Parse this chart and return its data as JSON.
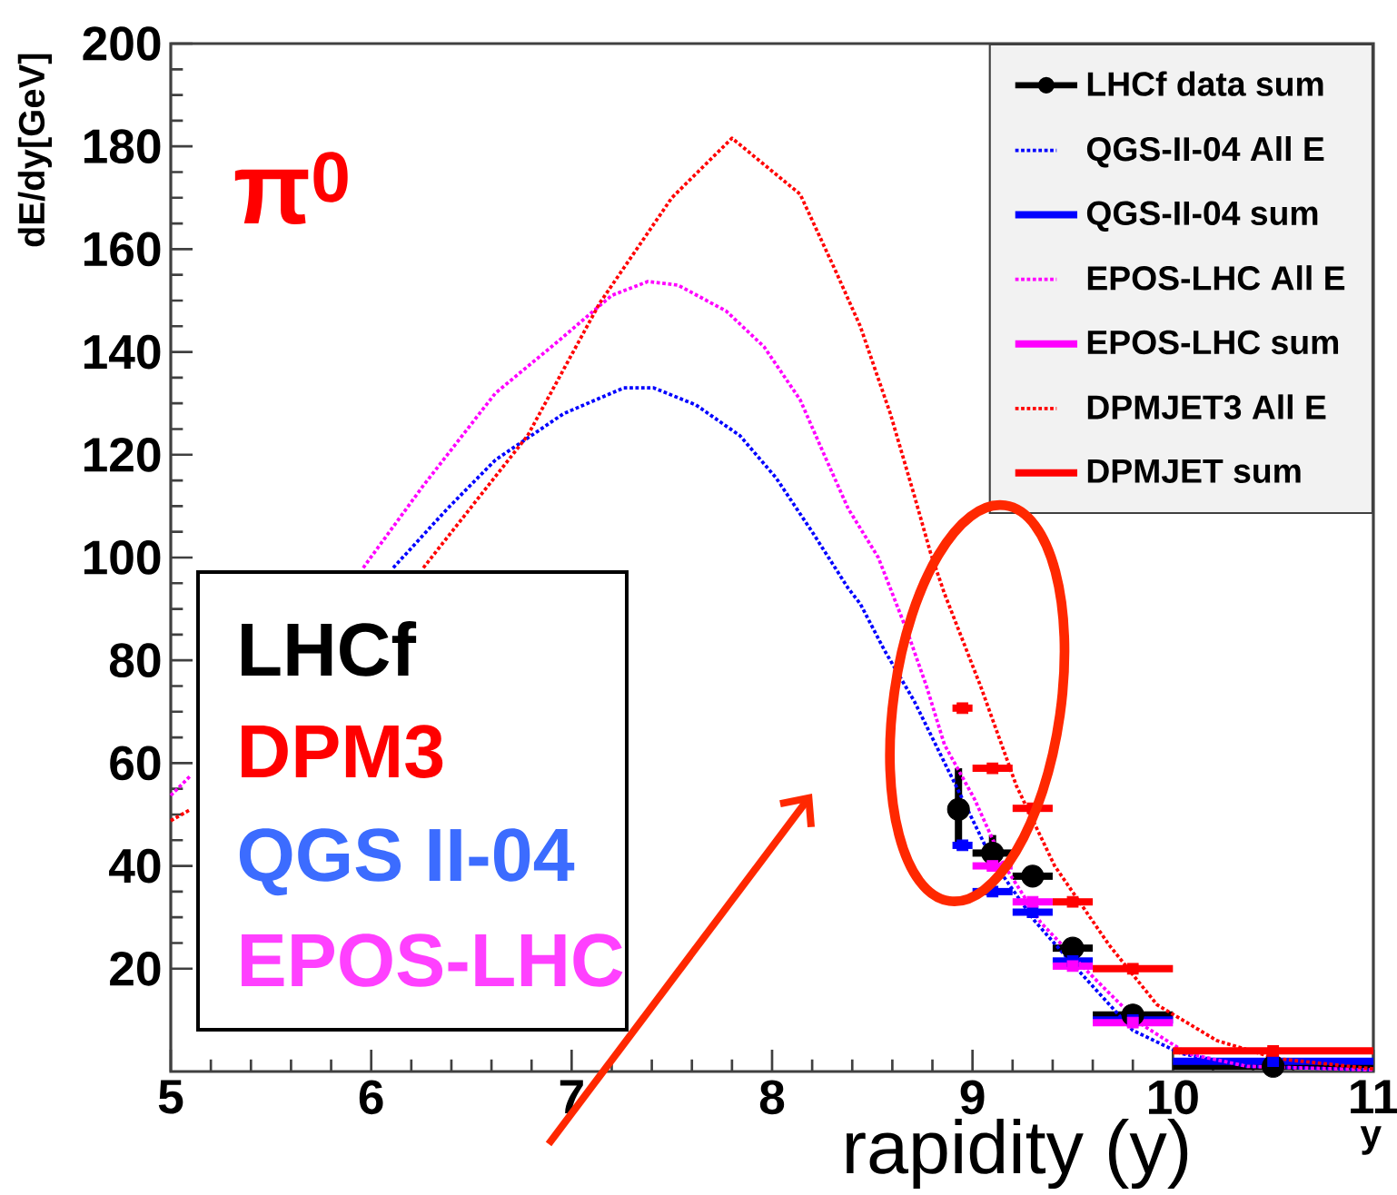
{
  "chart_data": {
    "type": "line",
    "ylabel": "dE/dy[GeV]",
    "xlabel": "y",
    "xlim": [
      5,
      11
    ],
    "ylim": [
      0,
      200
    ],
    "xticks": [
      5,
      6,
      7,
      8,
      9,
      10,
      11
    ],
    "yticks": [
      20,
      40,
      60,
      80,
      100,
      120,
      140,
      160,
      180,
      200
    ],
    "legend": "top right",
    "annotations": [
      "π$^{0}$",
      "LHCf",
      "DPM3",
      "QGS II-04",
      "EPOS-LHC",
      "rapidity (y)"
    ],
    "series": [
      {
        "name": "LHCf data sum",
        "type": "scatter",
        "color": "#000000",
        "marker": "circle",
        "x": [
          8.93,
          9.1,
          9.3,
          9.5,
          9.8,
          10.5
        ],
        "values": [
          51,
          42.5,
          38,
          24,
          11,
          1
        ],
        "errors": [
          [
            44,
            59
          ],
          [
            39,
            46
          ],
          null,
          null,
          null,
          null
        ],
        "xerrors": [
          0.05,
          0.1,
          0.1,
          0.1,
          0.2,
          0.5
        ]
      },
      {
        "name": "QGS-II-04 All E",
        "line_style": "dotted",
        "color": "#0000ff",
        "x": [
          6.11,
          6.38,
          6.62,
          6.96,
          7.26,
          7.41,
          7.62,
          7.84,
          8.02,
          8.2,
          8.38,
          8.44,
          8.56,
          8.71,
          8.83,
          8.95,
          9.1,
          9.31,
          9.52,
          9.8,
          10.04,
          10.37,
          11
        ],
        "values": [
          98,
          109.5,
          119,
          128,
          133,
          133,
          129.7,
          123.7,
          115.5,
          105,
          94,
          91,
          82,
          72,
          62.5,
          53,
          41,
          29.3,
          20,
          8,
          3.5,
          1,
          0.3
        ]
      },
      {
        "name": "QGS-II-04 sum",
        "type": "scatter",
        "marker": "square",
        "color": "#0000ff",
        "x": [
          8.95,
          9.1,
          9.3,
          9.5,
          9.8,
          10.5
        ],
        "values": [
          44,
          35,
          31,
          21.5,
          10,
          2
        ],
        "xerrors": [
          0.05,
          0.1,
          0.1,
          0.1,
          0.2,
          0.5
        ]
      },
      {
        "name": "EPOS-LHC All E",
        "line_style": "dotted",
        "color": "#ff00ff",
        "x": [
          5,
          5.1,
          5.5,
          5.96,
          6.26,
          6.62,
          6.93,
          7.2,
          7.38,
          7.53,
          7.77,
          7.96,
          8.14,
          8.26,
          8.38,
          8.53,
          8.68,
          8.77,
          8.86,
          9.01,
          9.16,
          9.34,
          9.56,
          9.83,
          10.07,
          10.37,
          11
        ],
        "values": [
          53.7,
          57.6,
          null,
          98,
          114,
          132,
          142,
          151,
          153.7,
          153,
          148,
          141,
          130.7,
          120,
          109.5,
          100,
          85,
          75,
          63.6,
          53,
          40,
          29,
          20,
          9.5,
          3.5,
          1,
          0.3
        ]
      },
      {
        "name": "EPOS-LHC sum",
        "type": "scatter",
        "marker": "square",
        "color": "#ff00ff",
        "x": [
          9.1,
          9.3,
          9.5,
          9.8
        ],
        "values": [
          40,
          33,
          20.5,
          9.5
        ],
        "xerrors": [
          0.1,
          0.1,
          0.1,
          0.2
        ]
      },
      {
        "name": "DPMJET3 All E",
        "line_style": "dotted",
        "color": "#ff0000",
        "x": [
          5,
          5.1,
          5.5,
          6.26,
          6.78,
          7.14,
          7.5,
          7.8,
          8.14,
          8.32,
          8.44,
          8.59,
          8.71,
          8.79,
          8.86,
          9.04,
          9.22,
          9.41,
          9.68,
          9.92,
          10.22,
          10.52,
          11
        ],
        "values": [
          48.8,
          51,
          null,
          98,
          123.7,
          149.5,
          170,
          181.6,
          170.7,
          155.5,
          145,
          128,
          112,
          101,
          93,
          75,
          55.5,
          40,
          24.7,
          13,
          6,
          2.5,
          0.5
        ]
      },
      {
        "name": "DPMJET sum",
        "type": "scatter",
        "marker": "square",
        "color": "#ff0000",
        "x": [
          8.95,
          9.1,
          9.3,
          9.5,
          9.8,
          10.5
        ],
        "values": [
          70.7,
          59,
          51.2,
          33,
          20,
          4
        ],
        "xerrors": [
          0.05,
          0.1,
          0.1,
          0.1,
          0.2,
          0.5
        ]
      }
    ]
  }
}
